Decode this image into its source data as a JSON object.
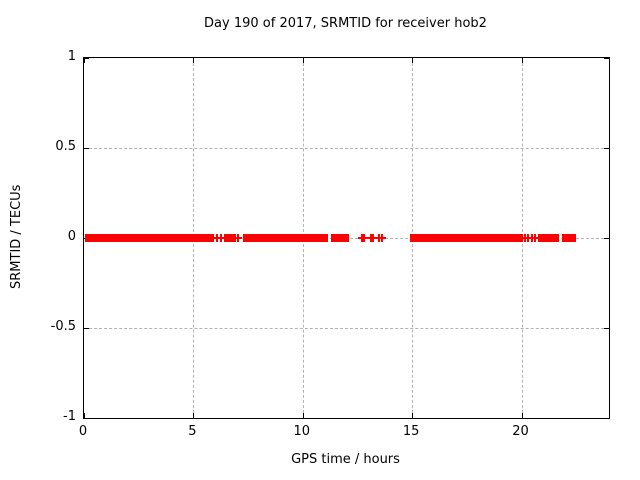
{
  "chart_data": {
    "type": "scatter",
    "title": "Day 190 of 2017, SRMTID for receiver hob2",
    "xlabel": "GPS time / hours",
    "ylabel": "SRMTID / TECUs",
    "xlim": [
      0,
      24
    ],
    "ylim": [
      -1,
      1
    ],
    "xticks": [
      0,
      5,
      10,
      15,
      20
    ],
    "xtick_labels": [
      "0",
      "5",
      "10",
      "15",
      "20"
    ],
    "yticks": [
      -1,
      -0.5,
      0,
      0.5,
      1
    ],
    "ytick_labels": [
      "-1",
      "-0.5",
      "0",
      "0.5",
      "1"
    ],
    "grid": true,
    "legend": "none",
    "marker": "plus",
    "marker_color": "#ff0000",
    "grid_color": "#b4b4b4",
    "border_color": "#000000",
    "background_color": "#ffffff",
    "series_value_y": 0,
    "dense_segments_hours": [
      [
        0.05,
        5.95
      ],
      [
        6.5,
        6.95
      ],
      [
        7.25,
        11.15
      ],
      [
        11.3,
        12.1
      ],
      [
        14.9,
        20.05
      ],
      [
        20.75,
        21.7
      ],
      [
        21.85,
        22.5
      ]
    ],
    "sparse_markers_hours": [
      6.1,
      6.25,
      6.45,
      7.05,
      12.7,
      12.8,
      13.1,
      13.2,
      13.5,
      13.6,
      20.15,
      20.3,
      20.5,
      20.6
    ]
  }
}
